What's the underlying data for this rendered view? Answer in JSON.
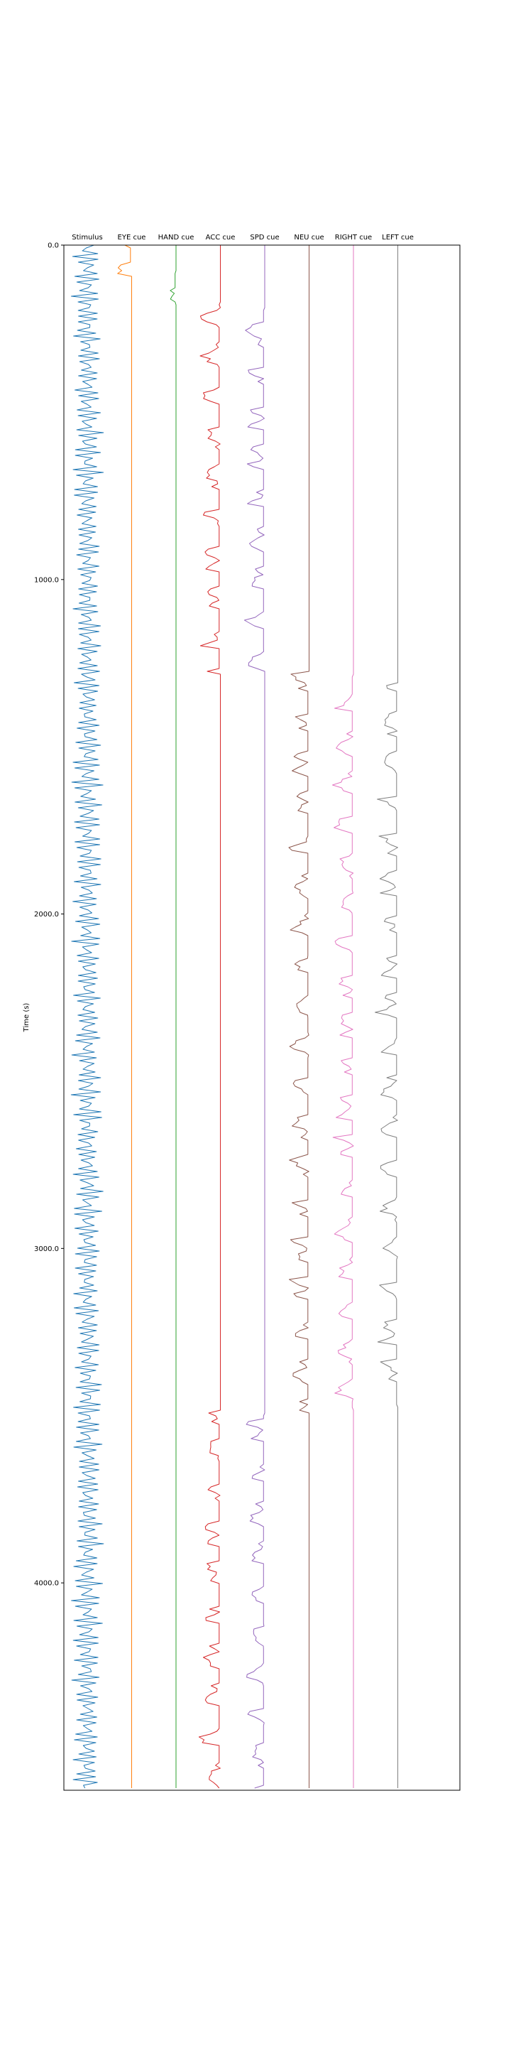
{
  "chart_data": {
    "type": "line",
    "ylabel": "Time (s)",
    "ylim": [
      0,
      4620
    ],
    "y_inverted": true,
    "yticks": [
      0,
      1000,
      2000,
      3000,
      4000
    ],
    "ytick_labels": [
      "0.0",
      "1000.0",
      "2000.0",
      "3000.0",
      "4000.0"
    ],
    "grid": false,
    "series": [
      {
        "name": "Stimulus",
        "color": "#1f77b4",
        "active_segments": [
          [
            0,
            4620
          ]
        ],
        "amplitude": 0.55
      },
      {
        "name": "EYE cue",
        "color": "#ff7f0e",
        "active_segments": [
          [
            0,
            90
          ]
        ],
        "amplitude": 0.45
      },
      {
        "name": "HAND cue",
        "color": "#2ca02c",
        "active_segments": [
          [
            80,
            170
          ]
        ],
        "amplitude": 0.35
      },
      {
        "name": "ACC cue",
        "color": "#d62728",
        "active_segments": [
          [
            170,
            1280
          ],
          [
            3490,
            4620
          ]
        ],
        "amplitude": 0.45
      },
      {
        "name": "SPD cue",
        "color": "#9467bd",
        "active_segments": [
          [
            190,
            1270
          ],
          [
            3500,
            4620
          ]
        ],
        "amplitude": 0.45
      },
      {
        "name": "NEU cue",
        "color": "#8c564b",
        "active_segments": [
          [
            1280,
            3490
          ]
        ],
        "amplitude": 0.45
      },
      {
        "name": "RIGHT cue",
        "color": "#e377c2",
        "active_segments": [
          [
            1290,
            3480
          ]
        ],
        "amplitude": 0.45
      },
      {
        "name": "LEFT cue",
        "color": "#7f7f7f",
        "active_segments": [
          [
            1310,
            3470
          ]
        ],
        "amplitude": 0.45
      }
    ]
  }
}
